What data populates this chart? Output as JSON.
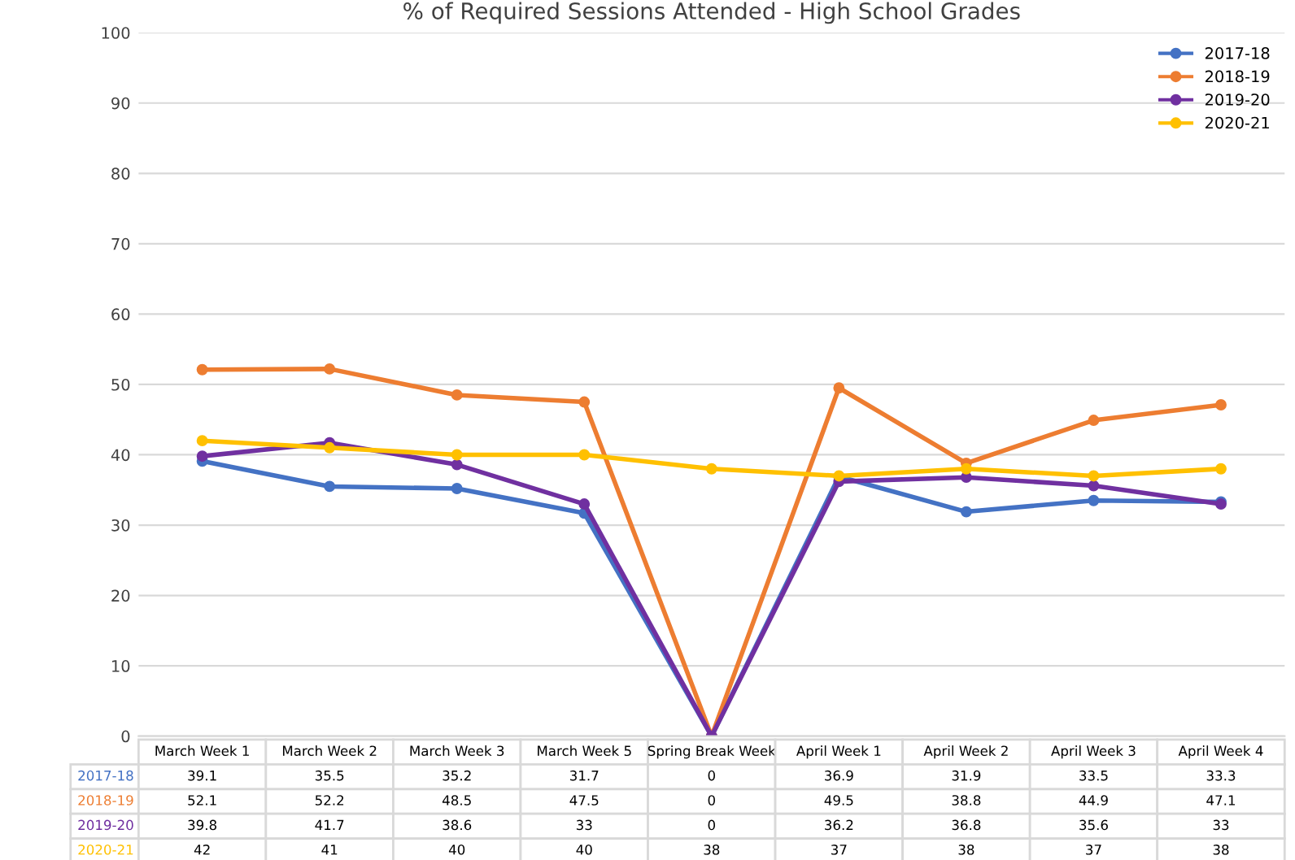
{
  "chart_data": {
    "type": "line",
    "title": "% of Required Sessions Attended - High School Grades",
    "categories": [
      "March Week 1",
      "March Week 2",
      "March Week 3",
      "March Week 5",
      "Spring Break Week",
      "April Week 1",
      "April Week 2",
      "April Week 3",
      "April Week 4"
    ],
    "series": [
      {
        "name": "2017-18",
        "color": "#4472c4",
        "values": [
          39.1,
          35.5,
          35.2,
          31.7,
          0,
          36.9,
          31.9,
          33.5,
          33.3
        ]
      },
      {
        "name": "2018-19",
        "color": "#ed7d31",
        "values": [
          52.1,
          52.2,
          48.5,
          47.5,
          0,
          49.5,
          38.8,
          44.9,
          47.1
        ]
      },
      {
        "name": "2019-20",
        "color": "#7030a0",
        "values": [
          39.8,
          41.7,
          38.6,
          33,
          0,
          36.2,
          36.8,
          35.6,
          33
        ]
      },
      {
        "name": "2020-21",
        "color": "#ffc000",
        "values": [
          42,
          41,
          40,
          40,
          38,
          37,
          38,
          37,
          38
        ]
      }
    ],
    "ylim": [
      0,
      100
    ],
    "yticks": [
      0,
      10,
      20,
      30,
      40,
      50,
      60,
      70,
      80,
      90,
      100
    ],
    "grid": "y",
    "legend": "top right",
    "marker": "circle",
    "line_style": "solid",
    "data_labels": true,
    "tick_labels": "y"
  }
}
